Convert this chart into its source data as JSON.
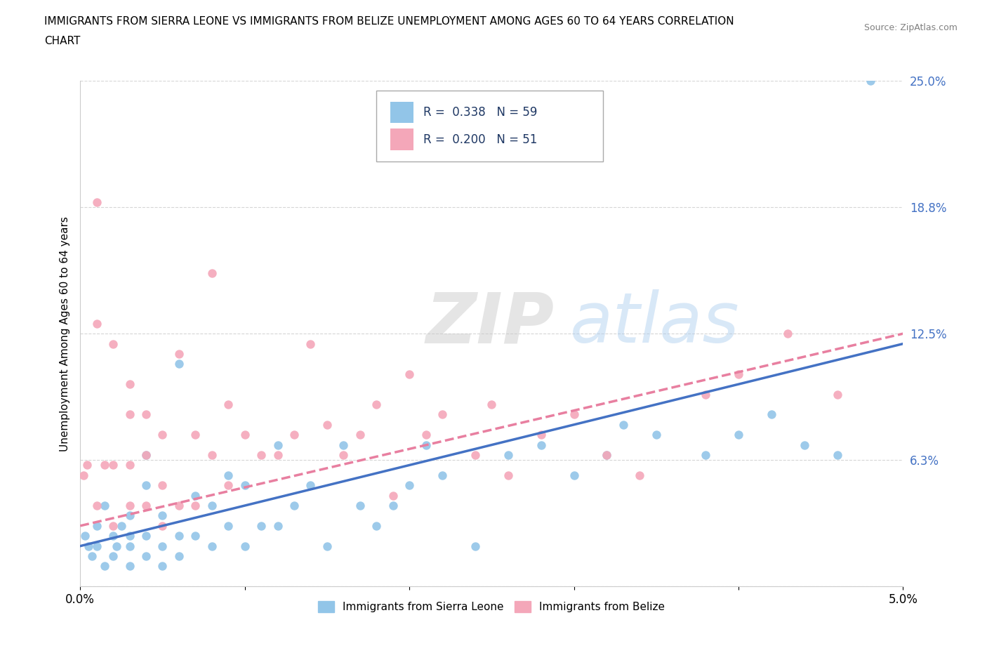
{
  "title_line1": "IMMIGRANTS FROM SIERRA LEONE VS IMMIGRANTS FROM BELIZE UNEMPLOYMENT AMONG AGES 60 TO 64 YEARS CORRELATION",
  "title_line2": "CHART",
  "source_text": "Source: ZipAtlas.com",
  "ylabel": "Unemployment Among Ages 60 to 64 years",
  "x_min": 0.0,
  "x_max": 0.05,
  "y_min": 0.0,
  "y_max": 0.25,
  "x_ticks": [
    0.0,
    0.01,
    0.02,
    0.03,
    0.04,
    0.05
  ],
  "x_tick_labels": [
    "0.0%",
    "",
    "",
    "",
    "",
    "5.0%"
  ],
  "y_ticks": [
    0.0,
    0.0625,
    0.125,
    0.1875,
    0.25
  ],
  "y_tick_labels": [
    "",
    "6.3%",
    "12.5%",
    "18.8%",
    "25.0%"
  ],
  "sierra_leone_color": "#92C5E8",
  "belize_color": "#F4A7B9",
  "sierra_leone_line_color": "#4472C4",
  "belize_line_color": "#E87FA0",
  "R_sierra": 0.338,
  "N_sierra": 59,
  "R_belize": 0.2,
  "N_belize": 51,
  "watermark_zip": "ZIP",
  "watermark_atlas": "atlas",
  "legend_label_sierra": "Immigrants from Sierra Leone",
  "legend_label_belize": "Immigrants from Belize",
  "legend_text_color": "#1F3864",
  "y_tick_color": "#4472C4",
  "sierra_leone_x": [
    0.0003,
    0.0005,
    0.0007,
    0.001,
    0.001,
    0.0015,
    0.0015,
    0.002,
    0.002,
    0.0022,
    0.0025,
    0.003,
    0.003,
    0.003,
    0.003,
    0.004,
    0.004,
    0.004,
    0.004,
    0.005,
    0.005,
    0.005,
    0.006,
    0.006,
    0.006,
    0.007,
    0.007,
    0.008,
    0.008,
    0.009,
    0.009,
    0.01,
    0.01,
    0.011,
    0.012,
    0.012,
    0.013,
    0.014,
    0.015,
    0.016,
    0.017,
    0.018,
    0.019,
    0.02,
    0.021,
    0.022,
    0.024,
    0.026,
    0.028,
    0.03,
    0.032,
    0.033,
    0.035,
    0.038,
    0.04,
    0.042,
    0.044,
    0.046,
    0.048
  ],
  "sierra_leone_y": [
    0.025,
    0.02,
    0.015,
    0.02,
    0.03,
    0.01,
    0.04,
    0.015,
    0.025,
    0.02,
    0.03,
    0.01,
    0.02,
    0.025,
    0.035,
    0.015,
    0.025,
    0.05,
    0.065,
    0.01,
    0.02,
    0.035,
    0.015,
    0.025,
    0.11,
    0.025,
    0.045,
    0.02,
    0.04,
    0.03,
    0.055,
    0.02,
    0.05,
    0.03,
    0.03,
    0.07,
    0.04,
    0.05,
    0.02,
    0.07,
    0.04,
    0.03,
    0.04,
    0.05,
    0.07,
    0.055,
    0.02,
    0.065,
    0.07,
    0.055,
    0.065,
    0.08,
    0.075,
    0.065,
    0.075,
    0.085,
    0.07,
    0.065,
    0.25
  ],
  "belize_x": [
    0.0002,
    0.0004,
    0.001,
    0.001,
    0.001,
    0.0015,
    0.002,
    0.002,
    0.002,
    0.003,
    0.003,
    0.003,
    0.003,
    0.004,
    0.004,
    0.004,
    0.005,
    0.005,
    0.005,
    0.006,
    0.006,
    0.007,
    0.007,
    0.008,
    0.008,
    0.009,
    0.009,
    0.01,
    0.011,
    0.012,
    0.013,
    0.014,
    0.015,
    0.016,
    0.017,
    0.018,
    0.019,
    0.02,
    0.021,
    0.022,
    0.024,
    0.025,
    0.026,
    0.028,
    0.03,
    0.032,
    0.034,
    0.038,
    0.04,
    0.043,
    0.046
  ],
  "belize_y": [
    0.055,
    0.06,
    0.04,
    0.13,
    0.19,
    0.06,
    0.03,
    0.06,
    0.12,
    0.04,
    0.06,
    0.085,
    0.1,
    0.04,
    0.065,
    0.085,
    0.03,
    0.05,
    0.075,
    0.04,
    0.115,
    0.04,
    0.075,
    0.065,
    0.155,
    0.05,
    0.09,
    0.075,
    0.065,
    0.065,
    0.075,
    0.12,
    0.08,
    0.065,
    0.075,
    0.09,
    0.045,
    0.105,
    0.075,
    0.085,
    0.065,
    0.09,
    0.055,
    0.075,
    0.085,
    0.065,
    0.055,
    0.095,
    0.105,
    0.125,
    0.095
  ],
  "sl_trend_x0": 0.0,
  "sl_trend_y0": 0.02,
  "sl_trend_x1": 0.05,
  "sl_trend_y1": 0.12,
  "bz_trend_x0": 0.0,
  "bz_trend_y0": 0.03,
  "bz_trend_x1": 0.05,
  "bz_trend_y1": 0.125
}
